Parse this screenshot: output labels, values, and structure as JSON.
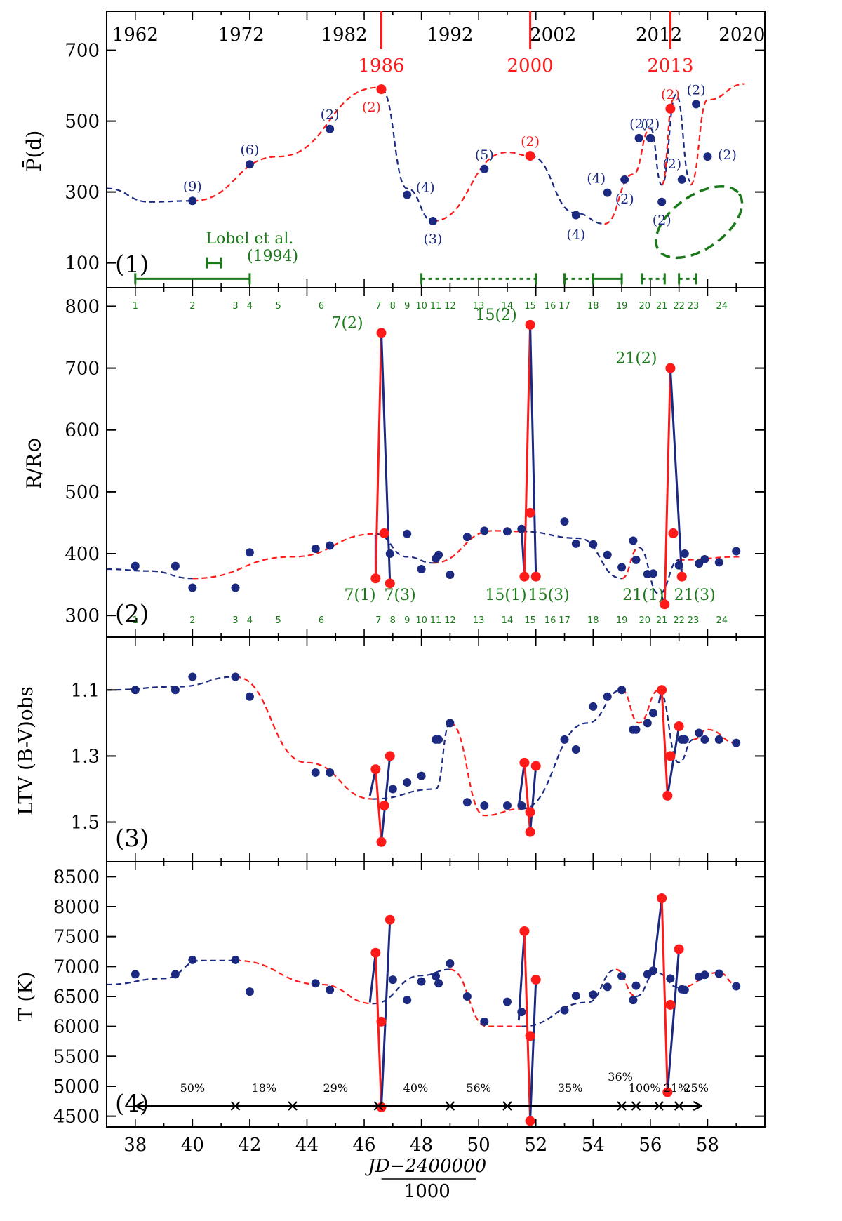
{
  "chart_data": {
    "type": "scatter",
    "x_axis": {
      "xlim": [
        37,
        60
      ],
      "ticks": [
        "38",
        "40",
        "42",
        "44",
        "46",
        "48",
        "50",
        "52",
        "54",
        "56",
        "58"
      ],
      "xlabel_num": "JD−2400000",
      "xlabel_den": "1000"
    },
    "colors": {
      "blue": "#1b2a80",
      "red": "#ff1a1a",
      "green": "#1a7a1a"
    },
    "years": [
      {
        "label": "1962",
        "x": 38.0
      },
      {
        "label": "1972",
        "x": 41.7
      },
      {
        "label": "1982",
        "x": 45.3
      },
      {
        "label": "1992",
        "x": 49.0
      },
      {
        "label": "2002",
        "x": 52.6
      },
      {
        "label": "2012",
        "x": 56.3
      },
      {
        "label": "2020",
        "x": 59.2
      }
    ],
    "red_years": [
      {
        "label": "1986",
        "x": 46.6
      },
      {
        "label": "2000",
        "x": 51.8
      },
      {
        "label": "2013",
        "x": 56.7
      }
    ],
    "numbered_ticks": [
      {
        "label": "1",
        "x": 38.0
      },
      {
        "label": "2",
        "x": 40.0
      },
      {
        "label": "3",
        "x": 41.5
      },
      {
        "label": "4",
        "x": 42.0
      },
      {
        "label": "5",
        "x": 43.0
      },
      {
        "label": "6",
        "x": 44.5
      },
      {
        "label": "7",
        "x": 46.5
      },
      {
        "label": "8",
        "x": 47.0
      },
      {
        "label": "9",
        "x": 47.5
      },
      {
        "label": "10",
        "x": 48.0
      },
      {
        "label": "11",
        "x": 48.5
      },
      {
        "label": "12",
        "x": 49.0
      },
      {
        "label": "13",
        "x": 50.0
      },
      {
        "label": "14",
        "x": 51.0
      },
      {
        "label": "15",
        "x": 51.8
      },
      {
        "label": "16",
        "x": 52.5
      },
      {
        "label": "17",
        "x": 53.0
      },
      {
        "label": "18",
        "x": 54.0
      },
      {
        "label": "19",
        "x": 55.0
      },
      {
        "label": "20",
        "x": 55.8
      },
      {
        "label": "21",
        "x": 56.4
      },
      {
        "label": "22",
        "x": 57.0
      },
      {
        "label": "23",
        "x": 57.5
      },
      {
        "label": "24",
        "x": 58.5
      }
    ],
    "panels": [
      {
        "id": "p1",
        "label": "(1)",
        "ylabel": "P̄(d)",
        "ylim": [
          30,
          810
        ],
        "yticks": [
          "100",
          "300",
          "500",
          "700"
        ],
        "blue_points": [
          {
            "x": 40.0,
            "y": 275,
            "n": "(9)"
          },
          {
            "x": 42.0,
            "y": 378,
            "n": "(6)"
          },
          {
            "x": 44.8,
            "y": 478,
            "n": "(2)"
          },
          {
            "x": 47.5,
            "y": 292,
            "n": "(4)"
          },
          {
            "x": 48.4,
            "y": 218,
            "n": "(3)"
          },
          {
            "x": 50.2,
            "y": 365,
            "n": "(5)"
          },
          {
            "x": 53.4,
            "y": 235,
            "n": "(4)"
          },
          {
            "x": 54.5,
            "y": 298,
            "n": "(4)"
          },
          {
            "x": 55.1,
            "y": 335,
            "n": "(2)"
          },
          {
            "x": 55.6,
            "y": 452,
            "n": "(2)"
          },
          {
            "x": 56.0,
            "y": 452,
            "n": "(2)"
          },
          {
            "x": 56.4,
            "y": 272,
            "n": "(2)"
          },
          {
            "x": 57.1,
            "y": 335,
            "n": "(2)"
          },
          {
            "x": 57.6,
            "y": 548,
            "n": "(2)"
          },
          {
            "x": 58.0,
            "y": 400,
            "n": "(2)"
          }
        ],
        "red_points": [
          {
            "x": 46.6,
            "y": 590,
            "n": "(2)"
          },
          {
            "x": 51.8,
            "y": 402,
            "n": "(2)"
          },
          {
            "x": 56.7,
            "y": 535,
            "n": "(2)"
          }
        ],
        "green_note": [
          "Lobel et al.",
          "(1994)"
        ]
      },
      {
        "id": "p2",
        "label": "(2)",
        "ylabel": "R/R⊙",
        "ylim": [
          265,
          830
        ],
        "yticks": [
          "300",
          "400",
          "500",
          "600",
          "700",
          "800"
        ],
        "blue_points": [
          {
            "x": 38.0,
            "y": 380
          },
          {
            "x": 39.4,
            "y": 380
          },
          {
            "x": 40.0,
            "y": 345
          },
          {
            "x": 41.5,
            "y": 345
          },
          {
            "x": 42.0,
            "y": 402
          },
          {
            "x": 44.3,
            "y": 408
          },
          {
            "x": 44.8,
            "y": 413
          },
          {
            "x": 46.6,
            "y": 757
          },
          {
            "x": 46.9,
            "y": 400
          },
          {
            "x": 47.5,
            "y": 432
          },
          {
            "x": 48.0,
            "y": 375
          },
          {
            "x": 48.5,
            "y": 392
          },
          {
            "x": 48.6,
            "y": 398
          },
          {
            "x": 49.0,
            "y": 366
          },
          {
            "x": 49.6,
            "y": 427
          },
          {
            "x": 50.2,
            "y": 437
          },
          {
            "x": 51.0,
            "y": 436
          },
          {
            "x": 51.5,
            "y": 440
          },
          {
            "x": 51.8,
            "y": 770
          },
          {
            "x": 53.0,
            "y": 452
          },
          {
            "x": 53.4,
            "y": 416
          },
          {
            "x": 54.0,
            "y": 415
          },
          {
            "x": 54.5,
            "y": 398
          },
          {
            "x": 55.0,
            "y": 378
          },
          {
            "x": 55.4,
            "y": 421
          },
          {
            "x": 55.5,
            "y": 390
          },
          {
            "x": 55.9,
            "y": 367
          },
          {
            "x": 56.1,
            "y": 368
          },
          {
            "x": 56.7,
            "y": 700
          },
          {
            "x": 57.0,
            "y": 381
          },
          {
            "x": 57.2,
            "y": 400
          },
          {
            "x": 57.7,
            "y": 384
          },
          {
            "x": 57.9,
            "y": 391
          },
          {
            "x": 58.4,
            "y": 386
          },
          {
            "x": 59.0,
            "y": 404
          }
        ],
        "red_points": [
          {
            "x": 46.4,
            "y": 360
          },
          {
            "x": 46.6,
            "y": 757
          },
          {
            "x": 46.7,
            "y": 433
          },
          {
            "x": 46.9,
            "y": 352
          },
          {
            "x": 51.6,
            "y": 363
          },
          {
            "x": 51.8,
            "y": 770
          },
          {
            "x": 51.8,
            "y": 466
          },
          {
            "x": 52.0,
            "y": 363
          },
          {
            "x": 56.5,
            "y": 318
          },
          {
            "x": 56.7,
            "y": 700
          },
          {
            "x": 56.8,
            "y": 433
          },
          {
            "x": 57.1,
            "y": 363
          }
        ],
        "peak_labels": [
          "7(2)",
          "15(2)",
          "21(2)"
        ],
        "low_labels": [
          "7(1)",
          "7(3)",
          "15(1)",
          "15(3)",
          "21(1)",
          "21(3)"
        ]
      },
      {
        "id": "p3",
        "label": "(3)",
        "ylabel": "LTV (B-V)obs",
        "ylim": [
          1.62,
          0.94
        ],
        "yticks": [
          "1.1",
          "1.3",
          "1.5"
        ],
        "blue_points": [
          {
            "x": 38.0,
            "y": 1.1
          },
          {
            "x": 39.4,
            "y": 1.1
          },
          {
            "x": 40.0,
            "y": 1.06
          },
          {
            "x": 41.5,
            "y": 1.06
          },
          {
            "x": 42.0,
            "y": 1.12
          },
          {
            "x": 44.3,
            "y": 1.35
          },
          {
            "x": 44.8,
            "y": 1.35
          },
          {
            "x": 46.6,
            "y": 1.56
          },
          {
            "x": 47.0,
            "y": 1.4
          },
          {
            "x": 47.5,
            "y": 1.38
          },
          {
            "x": 48.0,
            "y": 1.36
          },
          {
            "x": 48.5,
            "y": 1.25
          },
          {
            "x": 48.6,
            "y": 1.25
          },
          {
            "x": 49.0,
            "y": 1.2
          },
          {
            "x": 49.6,
            "y": 1.44
          },
          {
            "x": 50.2,
            "y": 1.45
          },
          {
            "x": 51.0,
            "y": 1.45
          },
          {
            "x": 51.5,
            "y": 1.45
          },
          {
            "x": 51.8,
            "y": 1.53
          },
          {
            "x": 53.0,
            "y": 1.25
          },
          {
            "x": 53.4,
            "y": 1.28
          },
          {
            "x": 54.0,
            "y": 1.15
          },
          {
            "x": 54.5,
            "y": 1.12
          },
          {
            "x": 55.0,
            "y": 1.1
          },
          {
            "x": 55.4,
            "y": 1.22
          },
          {
            "x": 55.5,
            "y": 1.22
          },
          {
            "x": 55.9,
            "y": 1.2
          },
          {
            "x": 56.1,
            "y": 1.17
          },
          {
            "x": 56.7,
            "y": 1.3
          },
          {
            "x": 57.1,
            "y": 1.25
          },
          {
            "x": 57.2,
            "y": 1.25
          },
          {
            "x": 57.7,
            "y": 1.23
          },
          {
            "x": 57.9,
            "y": 1.25
          },
          {
            "x": 58.4,
            "y": 1.25
          },
          {
            "x": 59.0,
            "y": 1.26
          }
        ],
        "red_points": [
          {
            "x": 46.4,
            "y": 1.34
          },
          {
            "x": 46.6,
            "y": 1.56
          },
          {
            "x": 46.7,
            "y": 1.45
          },
          {
            "x": 46.9,
            "y": 1.3
          },
          {
            "x": 51.6,
            "y": 1.32
          },
          {
            "x": 51.8,
            "y": 1.53
          },
          {
            "x": 51.8,
            "y": 1.47
          },
          {
            "x": 52.0,
            "y": 1.33
          },
          {
            "x": 56.4,
            "y": 1.1
          },
          {
            "x": 56.6,
            "y": 1.42
          },
          {
            "x": 56.7,
            "y": 1.3
          },
          {
            "x": 57.0,
            "y": 1.21
          }
        ]
      },
      {
        "id": "p4",
        "label": "(4)",
        "ylabel": "T (K)",
        "ylim": [
          4320,
          8750
        ],
        "yticks": [
          "4500",
          "5000",
          "5500",
          "6000",
          "6500",
          "7000",
          "7500",
          "8000",
          "8500"
        ],
        "blue_points": [
          {
            "x": 38.0,
            "y": 6870
          },
          {
            "x": 39.4,
            "y": 6870
          },
          {
            "x": 40.0,
            "y": 7110
          },
          {
            "x": 41.5,
            "y": 7110
          },
          {
            "x": 42.0,
            "y": 6580
          },
          {
            "x": 44.3,
            "y": 6720
          },
          {
            "x": 44.8,
            "y": 6610
          },
          {
            "x": 46.6,
            "y": 4650
          },
          {
            "x": 47.0,
            "y": 6780
          },
          {
            "x": 47.5,
            "y": 6440
          },
          {
            "x": 48.0,
            "y": 6750
          },
          {
            "x": 48.5,
            "y": 6840
          },
          {
            "x": 48.6,
            "y": 6720
          },
          {
            "x": 49.0,
            "y": 7050
          },
          {
            "x": 49.6,
            "y": 6500
          },
          {
            "x": 50.2,
            "y": 6080
          },
          {
            "x": 51.0,
            "y": 6410
          },
          {
            "x": 51.5,
            "y": 6240
          },
          {
            "x": 51.8,
            "y": 4420
          },
          {
            "x": 53.0,
            "y": 6270
          },
          {
            "x": 53.4,
            "y": 6510
          },
          {
            "x": 54.0,
            "y": 6530
          },
          {
            "x": 54.5,
            "y": 6660
          },
          {
            "x": 55.0,
            "y": 6840
          },
          {
            "x": 55.4,
            "y": 6440
          },
          {
            "x": 55.5,
            "y": 6680
          },
          {
            "x": 55.9,
            "y": 6870
          },
          {
            "x": 56.1,
            "y": 6930
          },
          {
            "x": 56.7,
            "y": 6800
          },
          {
            "x": 57.1,
            "y": 6620
          },
          {
            "x": 57.2,
            "y": 6610
          },
          {
            "x": 57.7,
            "y": 6830
          },
          {
            "x": 57.9,
            "y": 6860
          },
          {
            "x": 58.4,
            "y": 6880
          },
          {
            "x": 59.0,
            "y": 6670
          }
        ],
        "red_points": [
          {
            "x": 46.4,
            "y": 7230
          },
          {
            "x": 46.6,
            "y": 4650
          },
          {
            "x": 46.6,
            "y": 6080
          },
          {
            "x": 46.9,
            "y": 7780
          },
          {
            "x": 51.6,
            "y": 7590
          },
          {
            "x": 51.8,
            "y": 4420
          },
          {
            "x": 51.8,
            "y": 5840
          },
          {
            "x": 52.0,
            "y": 6780
          },
          {
            "x": 56.4,
            "y": 8140
          },
          {
            "x": 56.6,
            "y": 4900
          },
          {
            "x": 56.7,
            "y": 6360
          },
          {
            "x": 57.0,
            "y": 7290
          }
        ],
        "percent_segments": [
          {
            "label": "50%",
            "x": 40.0
          },
          {
            "label": "18%",
            "x": 42.5
          },
          {
            "label": "29%",
            "x": 45.0
          },
          {
            "label": "40%",
            "x": 47.8
          },
          {
            "label": "56%",
            "x": 50.0
          },
          {
            "label": "35%",
            "x": 53.2
          },
          {
            "label": "36%",
            "x": 54.95
          },
          {
            "label": "100%",
            "x": 55.8
          },
          {
            "label": "21%",
            "x": 56.9
          },
          {
            "label": "25%",
            "x": 57.6
          }
        ],
        "cross_marks": [
          41.5,
          43.5,
          46.5,
          49.0,
          51.0,
          55.0,
          55.5,
          56.3,
          57.0
        ]
      }
    ]
  }
}
